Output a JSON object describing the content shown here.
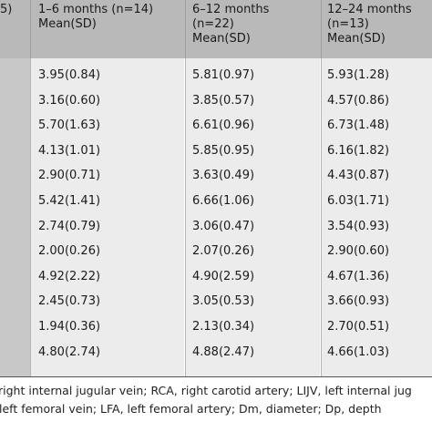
{
  "table": {
    "headers": [
      {
        "lines": [
          "5)"
        ]
      },
      {
        "lines": [
          "1–6 months (n=14)",
          "Mean(SD)"
        ]
      },
      {
        "lines": [
          "6–12 months",
          "(n=22)",
          "Mean(SD)"
        ]
      },
      {
        "lines": [
          "12–24 months",
          "(n=13)",
          "Mean(SD)"
        ]
      }
    ],
    "rows": [
      [
        "3.95(0.84)",
        "5.81(0.97)",
        "5.93(1.28)"
      ],
      [
        "3.16(0.60)",
        "3.85(0.57)",
        "4.57(0.86)"
      ],
      [
        "5.70(1.63)",
        "6.61(0.96)",
        "6.73(1.48)"
      ],
      [
        "4.13(1.01)",
        "5.85(0.95)",
        "6.16(1.82)"
      ],
      [
        "2.90(0.71)",
        "3.63(0.49)",
        "4.43(0.87)"
      ],
      [
        "5.42(1.41)",
        "6.66(1.06)",
        "6.03(1.71)"
      ],
      [
        "2.74(0.79)",
        "3.06(0.47)",
        "3.54(0.93)"
      ],
      [
        "2.00(0.26)",
        "2.07(0.26)",
        "2.90(0.60)"
      ],
      [
        "4.92(2.22)",
        "4.90(2.59)",
        "4.67(1.36)"
      ],
      [
        "2.45(0.73)",
        "3.05(0.53)",
        "3.66(0.93)"
      ],
      [
        "1.94(0.36)",
        "2.13(0.34)",
        "2.70(0.51)"
      ],
      [
        "4.80(2.74)",
        "4.88(2.47)",
        "4.66(1.03)"
      ]
    ]
  },
  "footnote": {
    "line1": "right internal jugular vein; RCA, right carotid artery; LIJV, left internal jug",
    "line2": "left femoral vein; LFA, left femoral artery; Dm, diameter; Dp, depth"
  }
}
